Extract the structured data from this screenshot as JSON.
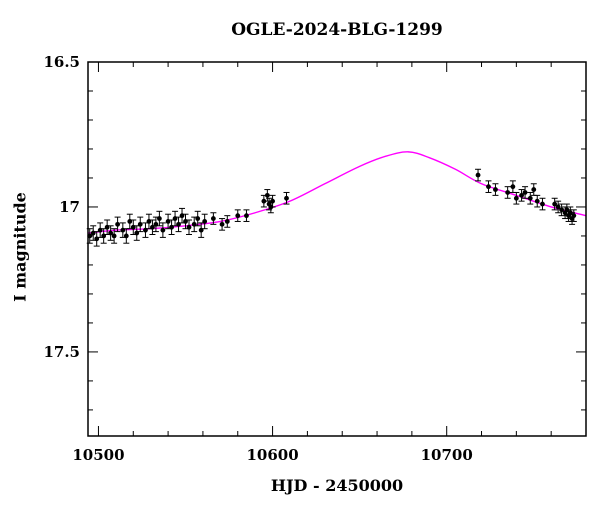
{
  "chart_data": {
    "type": "scatter",
    "title": "OGLE-2024-BLG-1299",
    "xlabel": "HJD - 2450000",
    "ylabel": "I magnitude",
    "xlim": [
      10494,
      10780
    ],
    "ylim": [
      17.79,
      16.5
    ],
    "y_inverted": true,
    "x_ticks": [
      10500,
      10600,
      10700
    ],
    "y_ticks": [
      16.5,
      17,
      17.5
    ],
    "grid": false,
    "legend": "none",
    "colors": {
      "points": "#000000",
      "model": "#ff00ff"
    },
    "model_curve": {
      "name": "",
      "x": [
        10494,
        10510,
        10530,
        10550,
        10570,
        10590,
        10610,
        10630,
        10650,
        10665,
        10678,
        10690,
        10705,
        10720,
        10740,
        10760,
        10780
      ],
      "y": [
        17.09,
        17.08,
        17.075,
        17.065,
        17.05,
        17.02,
        16.98,
        16.92,
        16.86,
        16.825,
        16.81,
        16.83,
        16.87,
        16.92,
        16.96,
        17.0,
        17.03
      ]
    },
    "series": [
      {
        "name": "",
        "x": [
          10495,
          10497,
          10499,
          10501,
          10503,
          10505,
          10507,
          10509,
          10511,
          10514,
          10516,
          10518,
          10520,
          10522,
          10524,
          10527,
          10529,
          10531,
          10533,
          10535,
          10537,
          10540,
          10542,
          10544,
          10546,
          10548,
          10550,
          10552,
          10555,
          10557,
          10559,
          10561,
          10566,
          10571,
          10574,
          10580,
          10585,
          10595,
          10597,
          10598,
          10599,
          10600,
          10608,
          10718,
          10724,
          10728,
          10735,
          10738,
          10740,
          10743,
          10745,
          10748,
          10750,
          10752,
          10755,
          10762,
          10764,
          10766,
          10768,
          10769,
          10770,
          10771,
          10772,
          10773
        ],
        "y": [
          17.1,
          17.09,
          17.11,
          17.08,
          17.1,
          17.07,
          17.09,
          17.1,
          17.06,
          17.08,
          17.1,
          17.05,
          17.07,
          17.09,
          17.06,
          17.08,
          17.05,
          17.07,
          17.06,
          17.04,
          17.08,
          17.05,
          17.07,
          17.04,
          17.06,
          17.03,
          17.05,
          17.07,
          17.06,
          17.04,
          17.08,
          17.05,
          17.04,
          17.06,
          17.05,
          17.03,
          17.03,
          16.98,
          16.96,
          16.99,
          17.0,
          16.98,
          16.97,
          16.89,
          16.93,
          16.94,
          16.95,
          16.93,
          16.97,
          16.96,
          16.95,
          16.97,
          16.94,
          16.98,
          16.99,
          16.99,
          17.0,
          17.01,
          17.02,
          17.01,
          17.03,
          17.02,
          17.04,
          17.03
        ],
        "err": [
          0.025,
          0.025,
          0.025,
          0.025,
          0.025,
          0.025,
          0.025,
          0.025,
          0.025,
          0.025,
          0.025,
          0.025,
          0.025,
          0.025,
          0.025,
          0.025,
          0.025,
          0.025,
          0.025,
          0.025,
          0.025,
          0.025,
          0.025,
          0.025,
          0.025,
          0.025,
          0.025,
          0.025,
          0.025,
          0.025,
          0.025,
          0.025,
          0.02,
          0.02,
          0.02,
          0.02,
          0.02,
          0.02,
          0.02,
          0.02,
          0.02,
          0.02,
          0.02,
          0.02,
          0.02,
          0.02,
          0.02,
          0.02,
          0.02,
          0.02,
          0.02,
          0.02,
          0.02,
          0.02,
          0.02,
          0.02,
          0.02,
          0.02,
          0.02,
          0.02,
          0.02,
          0.02,
          0.02,
          0.02
        ]
      }
    ]
  }
}
